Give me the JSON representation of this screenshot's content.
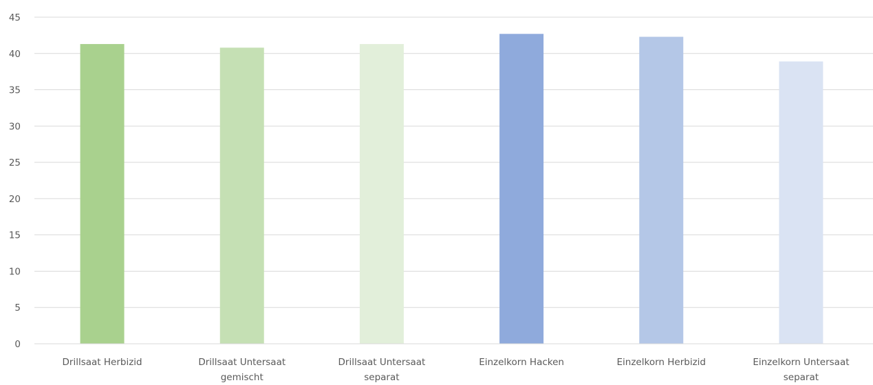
{
  "chart_data": {
    "type": "bar",
    "title": "",
    "xlabel": "",
    "ylabel": "",
    "categories": [
      [
        "Drillsaat Herbizid"
      ],
      [
        "Drillsaat Untersaat",
        "gemischt"
      ],
      [
        "Drillsaat Untersaat",
        "separat"
      ],
      [
        "Einzelkorn Hacken"
      ],
      [
        "Einzelkorn Herbizid"
      ],
      [
        "Einzelkorn Untersaat",
        "separat"
      ]
    ],
    "values": [
      41.3,
      40.8,
      41.3,
      42.7,
      42.3,
      38.9
    ],
    "bar_colors": [
      "#a9d18e",
      "#c5e0b4",
      "#e2efda",
      "#8faadc",
      "#b4c7e7",
      "#dae3f3"
    ],
    "ylim": [
      0,
      45
    ],
    "yticks": [
      0,
      5,
      10,
      15,
      20,
      25,
      30,
      35,
      40,
      45
    ],
    "grid": true,
    "legend": "none"
  }
}
